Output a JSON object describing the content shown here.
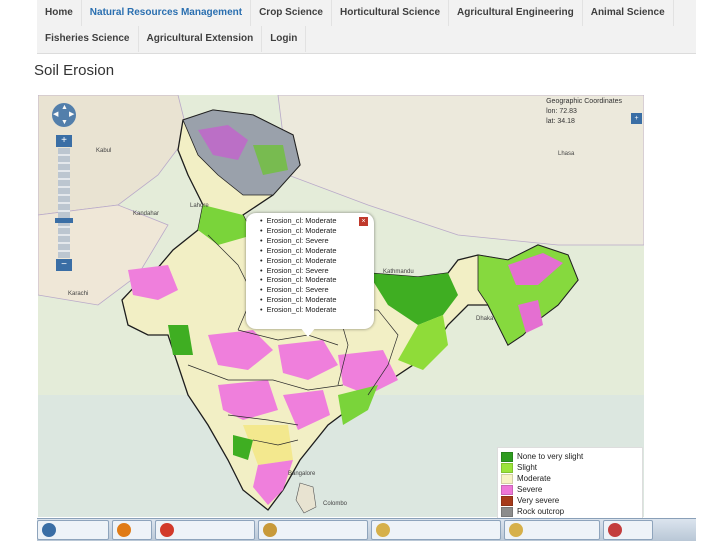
{
  "nav": {
    "row1": [
      "Home",
      "Natural Resources Management",
      "Crop Science",
      "Horticultural Science",
      "Agricultural Engineering",
      "Animal Science"
    ],
    "row2": [
      "Fisheries Science",
      "Agricultural Extension",
      "Login"
    ],
    "active_index": 1
  },
  "page": {
    "title": "Soil Erosion"
  },
  "map": {
    "coords_title": "Geographic Coordinates",
    "lon": "lon: 72.83",
    "lat": "lat: 34.18",
    "zoom_in": "+",
    "zoom_out": "−",
    "places": [
      "Kabul",
      "Kandahar",
      "Lahore",
      "Lhasa",
      "Kathmandu",
      "Dhaka",
      "Bangalore",
      "Colombo",
      "Karachi"
    ],
    "popup": {
      "items": [
        "Erosion_cl: Moderate",
        "Erosion_cl: Moderate",
        "Erosion_cl: Severe",
        "Erosion_cl: Moderate",
        "Erosion_cl: Moderate",
        "Erosion_cl: Severe",
        "Erosion_cl: Moderate",
        "Erosion_cl: Severe",
        "Erosion_cl: Moderate",
        "Erosion_cl: Moderate"
      ],
      "close": "×"
    },
    "legend": [
      {
        "label": "None to very slight",
        "color": "#2e9c1f"
      },
      {
        "label": "Slight",
        "color": "#9be43a"
      },
      {
        "label": "Moderate",
        "color": "#f7f3c4"
      },
      {
        "label": "Severe",
        "color": "#ee77d8"
      },
      {
        "label": "Very severe",
        "color": "#a63a1a"
      },
      {
        "label": "Rock outcrop",
        "color": "#8c8c8c"
      }
    ]
  },
  "taskbar": {
    "items": [
      {
        "label": "",
        "color": "#3a6ea5"
      },
      {
        "label": "",
        "color": "#e07b16"
      },
      {
        "label": "",
        "color": "#d23a2a"
      },
      {
        "label": "",
        "color": "#5b8fc9"
      },
      {
        "label": "",
        "color": "#c89a3a"
      },
      {
        "label": "",
        "color": "#d6b04a"
      },
      {
        "label": "",
        "color": "#d6b04a"
      },
      {
        "label": "",
        "color": "#c33d3d"
      }
    ]
  }
}
